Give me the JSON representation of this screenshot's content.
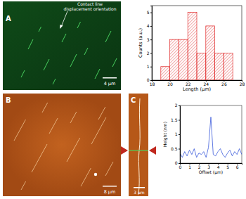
{
  "chart_data": [
    {
      "type": "histogram",
      "x_label": "Length (µm)",
      "y_label": "Counts (a.u.)",
      "bins": [
        19,
        20,
        21,
        22,
        23,
        24,
        25,
        26,
        27
      ],
      "counts": [
        1,
        3,
        3,
        5,
        2,
        4,
        2,
        2
      ],
      "color": "#e02828",
      "xlim": [
        18,
        28
      ],
      "xticks": [
        18,
        20,
        22,
        24,
        26,
        28
      ],
      "ylim": [
        0,
        5.5
      ],
      "yticks": [
        0,
        1,
        2,
        3,
        4,
        5
      ]
    },
    {
      "type": "line",
      "x_label": "Offset (µm)",
      "y_label": "Height (nm)",
      "x": [
        0,
        0.25,
        0.5,
        0.75,
        1,
        1.25,
        1.5,
        1.75,
        2,
        2.25,
        2.5,
        2.75,
        3,
        3.25,
        3.5,
        3.75,
        4,
        4.25,
        4.5,
        4.75,
        5,
        5.25,
        5.5,
        5.75,
        6,
        6.25,
        6.5
      ],
      "values": [
        0.35,
        0.2,
        0.4,
        0.25,
        0.45,
        0.3,
        0.5,
        0.2,
        0.35,
        0.3,
        0.4,
        0.2,
        0.55,
        1.6,
        0.3,
        0.25,
        0.4,
        0.5,
        0.3,
        0.2,
        0.35,
        0.45,
        0.25,
        0.4,
        0.3,
        0.5,
        0.3
      ],
      "color": "#3b5bdb",
      "xlim": [
        0,
        6.5
      ],
      "xticks": [
        0,
        1,
        2,
        3,
        4,
        5,
        6
      ],
      "ylim": [
        0,
        2
      ],
      "yticks": [
        0,
        0.5,
        1,
        1.5,
        2
      ]
    }
  ],
  "images": [
    {
      "label": "A",
      "scale_bar": "4 µm",
      "annotation": [
        "Contact line",
        "displacement orientation"
      ]
    },
    {
      "label": "B",
      "scale_bar": "8 µm"
    },
    {
      "label": "C",
      "scale_bar": "3 µm"
    }
  ]
}
